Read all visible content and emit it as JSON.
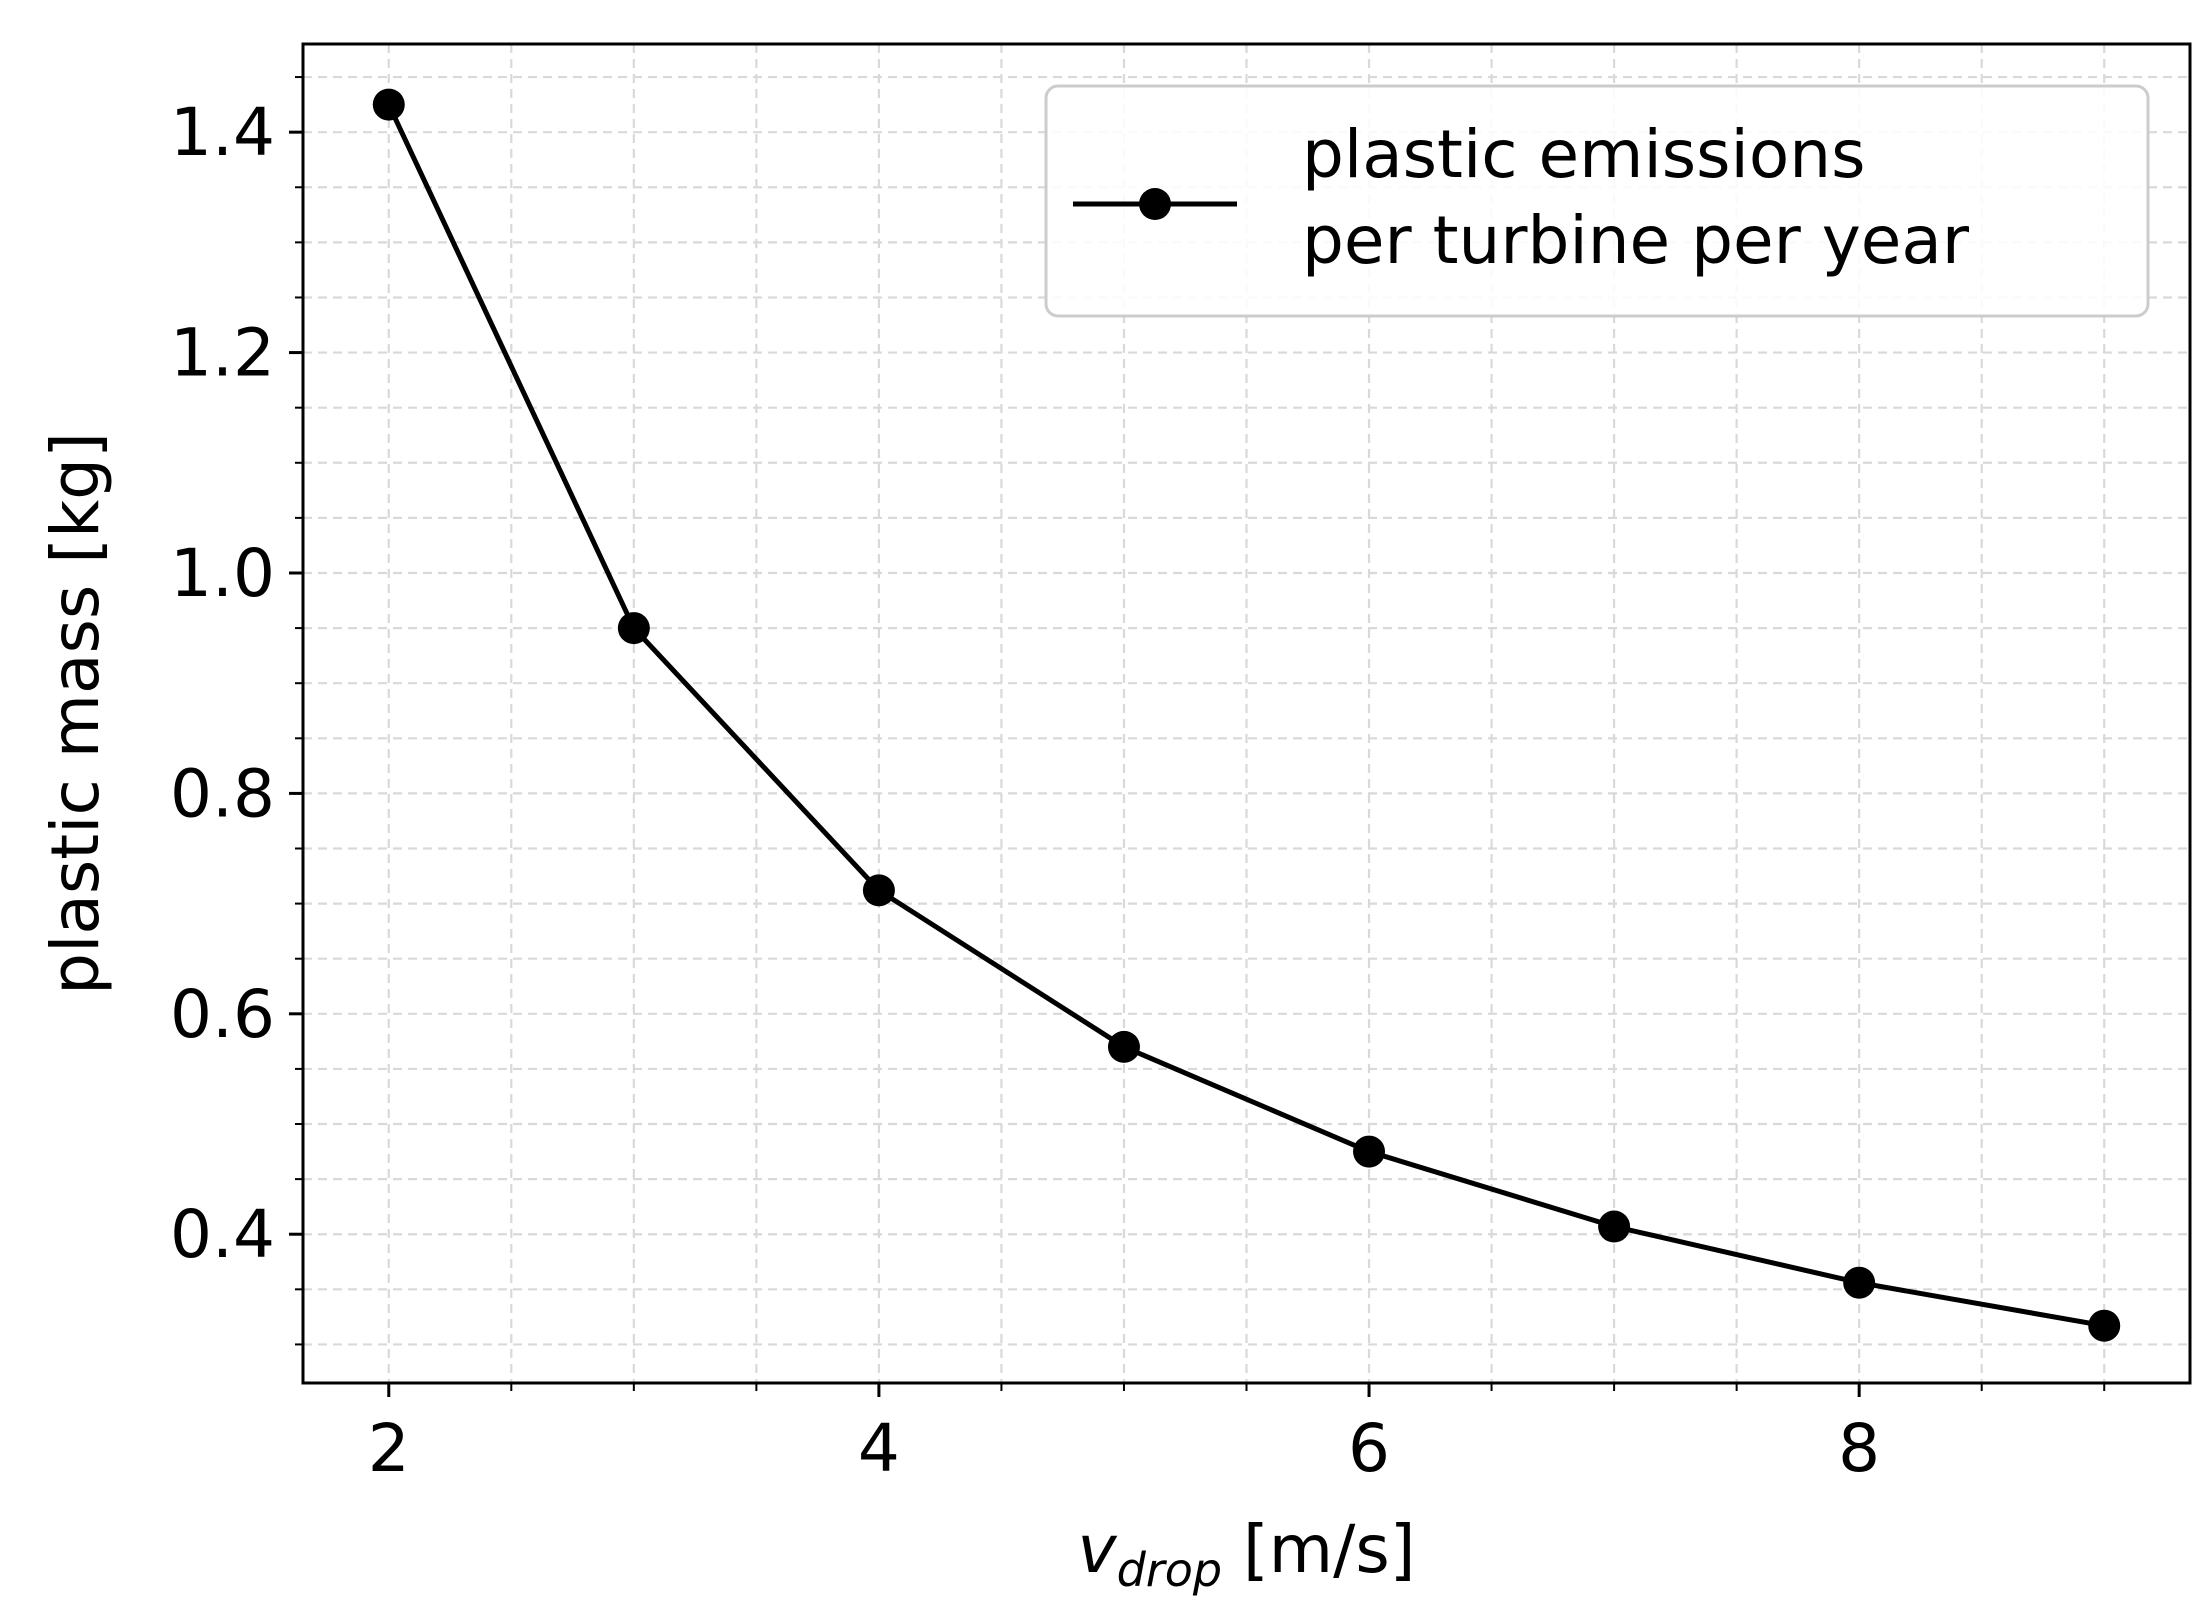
{
  "chart_data": {
    "type": "line",
    "xlabel": {
      "symbol": "v",
      "subscript": "drop",
      "unit": " [m/s]"
    },
    "ylabel": "plastic mass [kg]",
    "xlim": [
      1.65,
      9.35
    ],
    "ylim": [
      0.265,
      1.48
    ],
    "x_ticks": [
      2,
      4,
      6,
      8
    ],
    "y_ticks": [
      0.4,
      0.6,
      0.8,
      1.0,
      1.2,
      1.4
    ],
    "x_tick_labels": [
      "2",
      "4",
      "6",
      "8"
    ],
    "y_tick_labels": [
      "0.4",
      "0.6",
      "0.8",
      "1.0",
      "1.2",
      "1.4"
    ],
    "grid": {
      "major": true,
      "minor": true,
      "style": "dashed"
    },
    "legend": {
      "placement": "top-right",
      "entries": [
        "plastic emissions\nper turbine per year"
      ]
    },
    "series": [
      {
        "name": "plastic emissions\nper turbine per year",
        "color": "#000000",
        "marker": "circle",
        "x": [
          2,
          3,
          4,
          5,
          6,
          7,
          8,
          9
        ],
        "y": [
          1.425,
          0.95,
          0.712,
          0.57,
          0.475,
          0.407,
          0.356,
          0.317
        ]
      }
    ]
  }
}
